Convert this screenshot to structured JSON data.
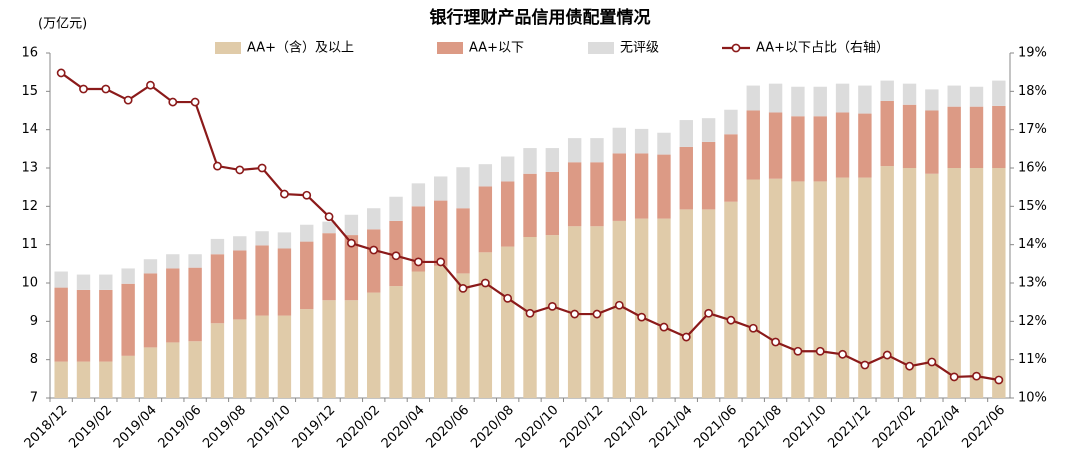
{
  "chart_data": {
    "type": "bar-line",
    "title": "银行理财产品信用债配置情况",
    "y_label": "(万亿元)",
    "categories": [
      "2018/12",
      null,
      "2019/02",
      null,
      "2019/04",
      null,
      "2019/06",
      null,
      "2019/08",
      null,
      "2019/10",
      null,
      "2019/12",
      null,
      "2020/02",
      null,
      "2020/04",
      null,
      "2020/06",
      null,
      "2020/08",
      null,
      "2020/10",
      null,
      "2020/12",
      null,
      "2021/02",
      null,
      "2021/04",
      null,
      "2021/06",
      null,
      "2021/08",
      null,
      "2021/10",
      null,
      "2021/12",
      null,
      "2022/02",
      null,
      "2022/04",
      null,
      "2022/06"
    ],
    "stacked": true,
    "series": [
      {
        "name": "AA+（含）及以上",
        "color": "#e0cba9",
        "type": "bar",
        "values": [
          7.95,
          7.95,
          7.95,
          8.1,
          8.32,
          8.45,
          8.48,
          8.95,
          9.05,
          9.15,
          9.15,
          9.32,
          9.55,
          9.55,
          9.75,
          9.92,
          10.3,
          10.45,
          10.25,
          10.8,
          10.95,
          11.2,
          11.25,
          11.48,
          11.48,
          11.62,
          11.68,
          11.68,
          11.92,
          11.92,
          12.12,
          12.7,
          12.72,
          12.65,
          12.65,
          12.75,
          12.75,
          13.05,
          13.0,
          12.85,
          13.0,
          13.0,
          13.0
        ]
      },
      {
        "name": "AA+以下",
        "color": "#dc9a85",
        "type": "bar",
        "values": [
          1.93,
          1.87,
          1.87,
          1.88,
          1.93,
          1.93,
          1.92,
          1.8,
          1.8,
          1.83,
          1.75,
          1.76,
          1.75,
          1.7,
          1.65,
          1.7,
          1.7,
          1.7,
          1.7,
          1.72,
          1.7,
          1.65,
          1.65,
          1.67,
          1.67,
          1.76,
          1.7,
          1.67,
          1.63,
          1.76,
          1.76,
          1.8,
          1.73,
          1.7,
          1.7,
          1.7,
          1.67,
          1.7,
          1.65,
          1.65,
          1.6,
          1.6,
          1.62
        ]
      },
      {
        "name": "无评级",
        "color": "#dcdcdc",
        "type": "bar",
        "values": [
          0.42,
          0.4,
          0.4,
          0.4,
          0.37,
          0.37,
          0.35,
          0.4,
          0.37,
          0.37,
          0.42,
          0.44,
          0.3,
          0.53,
          0.55,
          0.63,
          0.6,
          0.63,
          1.07,
          0.58,
          0.65,
          0.67,
          0.62,
          0.63,
          0.63,
          0.67,
          0.64,
          0.57,
          0.7,
          0.62,
          0.64,
          0.65,
          0.75,
          0.77,
          0.77,
          0.75,
          0.73,
          0.53,
          0.55,
          0.55,
          0.55,
          0.52,
          0.66
        ]
      },
      {
        "name": "AA+以下占比（右轴）",
        "color": "#8b1a1a",
        "type": "line",
        "axis": "y2",
        "values": [
          18.48,
          18.06,
          18.06,
          17.77,
          18.16,
          17.72,
          17.72,
          16.05,
          15.95,
          16.0,
          15.32,
          15.29,
          14.73,
          14.04,
          13.86,
          13.71,
          13.55,
          13.55,
          12.86,
          13.0,
          12.6,
          12.21,
          12.39,
          12.19,
          12.19,
          12.42,
          12.11,
          11.85,
          11.59,
          12.21,
          12.03,
          11.82,
          11.46,
          11.22,
          11.22,
          11.14,
          10.86,
          11.12,
          10.83,
          10.94,
          10.55,
          10.57,
          10.47
        ]
      }
    ],
    "ylim": [
      7,
      16
    ],
    "yticks": [
      7,
      8,
      9,
      10,
      11,
      12,
      13,
      14,
      15,
      16
    ],
    "y2lim": [
      10,
      19
    ],
    "y2ticks": [
      {
        "value": 10,
        "label": "10%"
      },
      {
        "value": 11,
        "label": "11%"
      },
      {
        "value": 12,
        "label": "12%"
      },
      {
        "value": 13,
        "label": "13%"
      },
      {
        "value": 14,
        "label": "14%"
      },
      {
        "value": 15,
        "label": "15%"
      },
      {
        "value": 16,
        "label": "16%"
      },
      {
        "value": 17,
        "label": "17%"
      },
      {
        "value": 18,
        "label": "18%"
      },
      {
        "value": 19,
        "label": "19%"
      }
    ],
    "legend": "top"
  }
}
